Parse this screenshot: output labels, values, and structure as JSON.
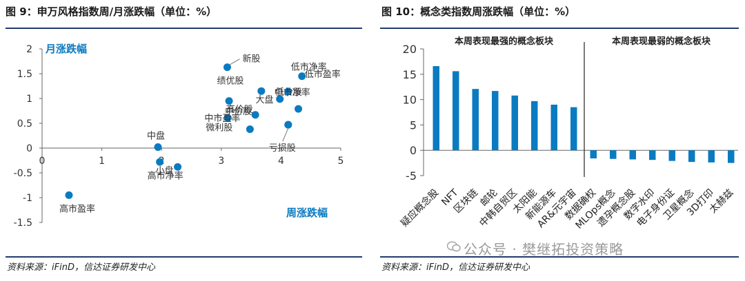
{
  "left_panel": {
    "title": "图 9：申万风格指数周/月涨跌幅（单位：%）",
    "source": "资料来源：iFinD，信达证券研发中心"
  },
  "right_panel": {
    "title": "图 10：概念类指数周涨跌幅（单位：%）",
    "source": "资料来源：iFinD，信达证券研发中心"
  },
  "watermark": "公众号 · 樊继拓投资策略",
  "colors": {
    "accent": "#0b7bc1",
    "rule": "#1f3a6d",
    "bar": "#0b7bc1"
  },
  "chart_data": [
    {
      "type": "scatter",
      "title": "",
      "xlabel": "周涨跌幅",
      "ylabel": "月涨跌幅",
      "xlim": [
        0,
        5
      ],
      "ylim": [
        -1.5,
        2
      ],
      "xticks": [
        0,
        1,
        2,
        3,
        4,
        5
      ],
      "yticks": [
        -1.5,
        -1,
        -0.5,
        0,
        0.5,
        1,
        1.5,
        2
      ],
      "points": [
        {
          "label": "新股",
          "x": 3.1,
          "y": 1.63
        },
        {
          "label": "低市净率",
          "x": 4.35,
          "y": 1.45
        },
        {
          "label": "低价股",
          "x": 3.67,
          "y": 1.15
        },
        {
          "label": "低市盈率",
          "x": 4.12,
          "y": 1.14
        },
        {
          "label": "中市净率",
          "x": 3.98,
          "y": 0.99
        },
        {
          "label": "绩优股",
          "x": 3.13,
          "y": 0.95
        },
        {
          "label": "大盘",
          "x": 4.29,
          "y": 0.79
        },
        {
          "label": "中价股",
          "x": 3.57,
          "y": 0.67
        },
        {
          "label": "中市盈率",
          "x": 3.11,
          "y": 0.61
        },
        {
          "label": "高价股",
          "x": 4.12,
          "y": 0.47
        },
        {
          "label": "微利股",
          "x": 3.48,
          "y": 0.38
        },
        {
          "label": "亏损股",
          "x": 4.12,
          "y": 0.47
        },
        {
          "label": "中盘",
          "x": 1.94,
          "y": 0.02
        },
        {
          "label": "小盘",
          "x": 1.97,
          "y": -0.28
        },
        {
          "label": "高市净率",
          "x": 2.27,
          "y": -0.38
        },
        {
          "label": "高市盈率",
          "x": 0.45,
          "y": -0.95
        }
      ]
    },
    {
      "type": "bar",
      "title": "",
      "ylim": [
        -5,
        20
      ],
      "yticks": [
        -5,
        0,
        5,
        10,
        15,
        20
      ],
      "groups": [
        "本周表现最强的概念板块",
        "本周表现最弱的概念板块"
      ],
      "categories": [
        "疑应概念股",
        "NFT",
        "区块链",
        "邮轮",
        "中韩自贸区",
        "太阳能",
        "新能源车",
        "AR&元宇宙",
        "数据确权",
        "MLOps概念",
        "遗孕概念股",
        "数字水印",
        "电子身份证",
        "卫星概念",
        "3D打印",
        "太赫兹"
      ],
      "values": [
        16.6,
        15.6,
        12.1,
        11.7,
        10.8,
        9.7,
        9.0,
        8.5,
        -1.6,
        -1.7,
        -1.8,
        -1.9,
        -2.1,
        -2.3,
        -2.4,
        -2.5
      ]
    }
  ]
}
